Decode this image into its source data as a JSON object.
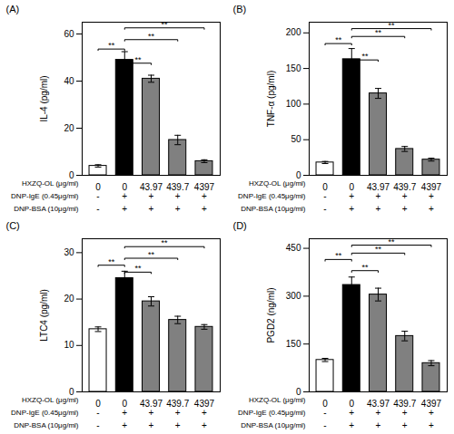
{
  "chart_data": [
    {
      "type": "bar",
      "title": "(A)",
      "ylabel": "IL-4 (pg/ml)",
      "xlabel": "HXZQ-OL (μg/ml)",
      "categories": [
        "0",
        "0",
        "43.97",
        "439.7",
        "4397"
      ],
      "values": [
        4.0,
        49.0,
        41.0,
        15.0,
        6.0
      ],
      "errors": [
        0.5,
        3.5,
        1.5,
        2.0,
        0.6
      ],
      "colors": [
        "white",
        "black",
        "#808080",
        "#808080",
        "#808080"
      ],
      "ylim": [
        0,
        65
      ],
      "yticks": [
        0,
        20,
        40,
        60
      ],
      "grid": false,
      "annotations": [
        {
          "text": "**",
          "x1": 0,
          "x2": 1,
          "y": 53,
          "h": 0.6
        },
        {
          "text": "**",
          "x1": 1,
          "x2": 2,
          "y": 47,
          "h": 0.6
        },
        {
          "text": "**",
          "x1": 1,
          "x2": 3,
          "y": 57,
          "h": 0.6
        },
        {
          "text": "**",
          "x1": 1,
          "x2": 4,
          "y": 62,
          "h": 0.6
        }
      ],
      "rows": [
        {
          "label": "DNP-IgE (0.45μg/ml)",
          "symbols": [
            "-",
            "+",
            "+",
            "+",
            "+"
          ]
        },
        {
          "label": "DNP-BSA (10μg/ml)",
          "symbols": [
            "-",
            "+",
            "+",
            "+",
            "+"
          ]
        }
      ]
    },
    {
      "type": "bar",
      "title": "(B)",
      "ylabel": "TNF-α (pg/ml)",
      "xlabel": "HXZQ-OL (μg/ml)",
      "categories": [
        "0",
        "0",
        "43.97",
        "439.7",
        "4397"
      ],
      "values": [
        18.0,
        163.0,
        115.0,
        37.0,
        22.0
      ],
      "errors": [
        1.5,
        15.0,
        7.0,
        3.5,
        2.0
      ],
      "colors": [
        "white",
        "black",
        "#808080",
        "#808080",
        "#808080"
      ],
      "ylim": [
        0,
        215
      ],
      "yticks": [
        0,
        50,
        100,
        150,
        200
      ],
      "grid": false,
      "annotations": [
        {
          "text": "**",
          "x1": 0,
          "x2": 1,
          "y": 183,
          "h": 2.0
        },
        {
          "text": "**",
          "x1": 1,
          "x2": 2,
          "y": 160,
          "h": 2.0
        },
        {
          "text": "**",
          "x1": 1,
          "x2": 3,
          "y": 193,
          "h": 2.0
        },
        {
          "text": "**",
          "x1": 1,
          "x2": 4,
          "y": 204,
          "h": 2.0
        }
      ],
      "rows": [
        {
          "label": "DNP-IgE (0.45μg/ml)",
          "symbols": [
            "-",
            "+",
            "+",
            "+",
            "+"
          ]
        },
        {
          "label": "DNP-BSA (10μg/ml)",
          "symbols": [
            "-",
            "+",
            "+",
            "+",
            "+"
          ]
        }
      ]
    },
    {
      "type": "bar",
      "title": "(C)",
      "ylabel": "LTC4 (pg/ml)",
      "xlabel": "HXZQ-OL (μg/ml)",
      "categories": [
        "0",
        "0",
        "43.97",
        "439.7",
        "4397"
      ],
      "values": [
        13.5,
        24.5,
        19.5,
        15.5,
        14.0
      ],
      "errors": [
        0.5,
        1.5,
        1.0,
        0.8,
        0.5
      ],
      "colors": [
        "white",
        "black",
        "#808080",
        "#808080",
        "#808080"
      ],
      "ylim": [
        0,
        33
      ],
      "yticks": [
        0,
        10,
        20,
        30
      ],
      "grid": false,
      "annotations": [
        {
          "text": "**",
          "x1": 0,
          "x2": 1,
          "y": 27.0,
          "h": 0.3
        },
        {
          "text": "**",
          "x1": 1,
          "x2": 2,
          "y": 25.5,
          "h": 0.3
        },
        {
          "text": "**",
          "x1": 1,
          "x2": 3,
          "y": 28.5,
          "h": 0.3
        },
        {
          "text": "**",
          "x1": 1,
          "x2": 4,
          "y": 31.0,
          "h": 0.3
        }
      ],
      "rows": [
        {
          "label": "DNP-IgE (0.45μg/ml)",
          "symbols": [
            "-",
            "+",
            "+",
            "+",
            "+"
          ]
        },
        {
          "label": "DNP-BSA (10μg/ml)",
          "symbols": [
            "-",
            "+",
            "+",
            "+",
            "+"
          ]
        }
      ]
    },
    {
      "type": "bar",
      "title": "(D)",
      "ylabel": "PGD2 (ng/ml)",
      "xlabel": "HXZQ-OL (μg/ml)",
      "categories": [
        "0",
        "0",
        "43.97",
        "439.7",
        "4397"
      ],
      "values": [
        100.0,
        335.0,
        305.0,
        175.0,
        90.0
      ],
      "errors": [
        5.0,
        25.0,
        20.0,
        15.0,
        8.0
      ],
      "colors": [
        "white",
        "black",
        "#808080",
        "#808080",
        "#808080"
      ],
      "ylim": [
        0,
        480
      ],
      "yticks": [
        0,
        150,
        300,
        450
      ],
      "grid": false,
      "annotations": [
        {
          "text": "**",
          "x1": 0,
          "x2": 1,
          "y": 410,
          "h": 5
        },
        {
          "text": "**",
          "x1": 1,
          "x2": 2,
          "y": 375,
          "h": 5
        },
        {
          "text": "**",
          "x1": 1,
          "x2": 3,
          "y": 430,
          "h": 5
        },
        {
          "text": "**",
          "x1": 1,
          "x2": 4,
          "y": 455,
          "h": 5
        }
      ],
      "rows": [
        {
          "label": "DNP-IgE (0.45μg/ml)",
          "symbols": [
            "-",
            "+",
            "+",
            "+",
            "+"
          ]
        },
        {
          "label": "DNP-BSA (10μg/ml)",
          "symbols": [
            "-",
            "+",
            "+",
            "+",
            "+"
          ]
        }
      ]
    }
  ]
}
